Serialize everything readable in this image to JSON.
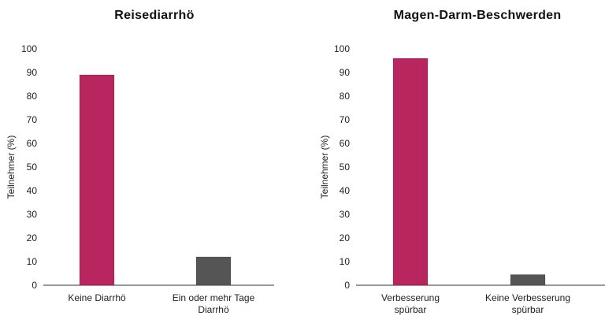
{
  "chart_data": [
    {
      "type": "bar",
      "title": "Reisediarrhö",
      "ylabel": "Teilnehmer (%)",
      "ylim": [
        0,
        100
      ],
      "yticks": [
        0,
        10,
        20,
        30,
        40,
        50,
        60,
        70,
        80,
        90,
        100
      ],
      "categories": [
        [
          "Keine Diarrhö"
        ],
        [
          "Ein oder mehr Tage",
          "Diarrhö"
        ]
      ],
      "values": [
        89,
        12
      ],
      "colors": [
        "#b8255f",
        "#555555"
      ],
      "grid": false
    },
    {
      "type": "bar",
      "title": "Magen-Darm-Beschwerden",
      "ylabel": "Teilnehmer (%)",
      "ylim": [
        0,
        100
      ],
      "yticks": [
        0,
        10,
        20,
        30,
        40,
        50,
        60,
        70,
        80,
        90,
        100
      ],
      "categories": [
        [
          "Verbesserung",
          "spürbar"
        ],
        [
          "Keine Verbesserung",
          "spürbar"
        ]
      ],
      "values": [
        96,
        4.5
      ],
      "colors": [
        "#b8255f",
        "#555555"
      ],
      "grid": false
    }
  ]
}
